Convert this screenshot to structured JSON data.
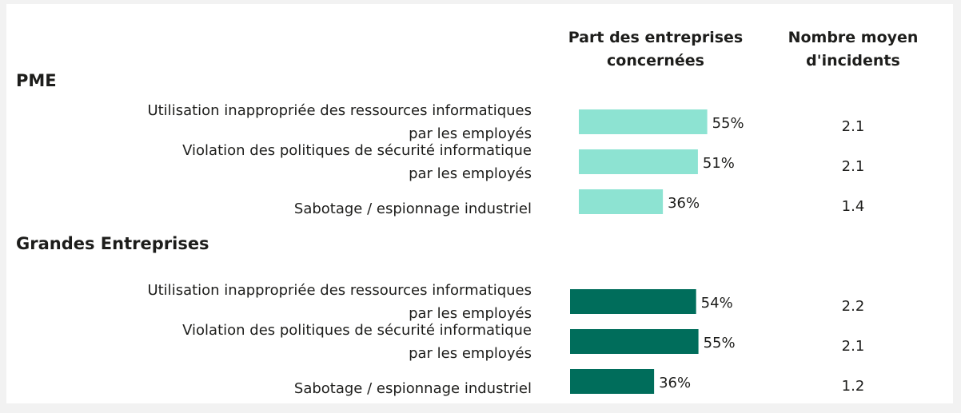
{
  "chart_data": {
    "type": "bar",
    "column_headers": [
      "Part des entreprises\nconcernées",
      "Nombre moyen\nd'incidents"
    ],
    "groups": [
      {
        "name": "PME",
        "color": "#8de3d2",
        "categories": [
          "Utilisation inappropriée des ressources informatiques\npar les employés",
          "Violation des politiques de sécurité informatique\npar les employés",
          "Sabotage / espionnage industriel"
        ],
        "values": [
          55,
          51,
          36
        ],
        "value_labels": [
          "55%",
          "51%",
          "36%"
        ],
        "incidents": [
          2.1,
          2.1,
          1.4
        ]
      },
      {
        "name": "Grandes Entreprises",
        "color": "#006d5b",
        "categories": [
          "Utilisation inappropriée des ressources informatiques\npar les employés",
          "Violation des politiques de sécurité informatique\npar les employés",
          "Sabotage / espionnage industriel"
        ],
        "values": [
          54,
          55,
          36
        ],
        "value_labels": [
          "54%",
          "55%",
          "36%"
        ],
        "incidents": [
          2.2,
          2.1,
          1.2
        ]
      }
    ]
  }
}
